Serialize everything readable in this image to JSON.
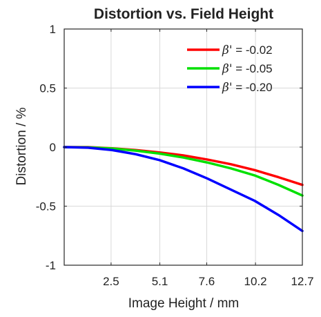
{
  "chart_data": {
    "type": "line",
    "title": "Distortion vs. Field Height",
    "xlabel": "Image Height / mm",
    "ylabel": "Distortion / %",
    "xlim": [
      0,
      12.7
    ],
    "ylim": [
      -1,
      1
    ],
    "xticks": [
      2.5,
      5.1,
      7.6,
      10.2,
      12.7
    ],
    "xtick_labels": [
      "2.5",
      "5.1",
      "7.6",
      "10.2",
      "12.7"
    ],
    "yticks": [
      1,
      0.5,
      0,
      -0.5,
      -1
    ],
    "ytick_labels": [
      "1",
      "0.5",
      "0",
      "-0.5",
      "-1"
    ],
    "grid": true,
    "legend_position": "top-right",
    "x": [
      0,
      1.27,
      2.54,
      3.81,
      5.08,
      6.35,
      7.62,
      8.89,
      10.16,
      11.43,
      12.7
    ],
    "series": [
      {
        "name": "β' = -0.02",
        "legend_symbol": "β'",
        "legend_value": " = -0.02",
        "color": "#ff0000",
        "values": [
          0,
          0,
          -0.01,
          -0.025,
          -0.045,
          -0.07,
          -0.105,
          -0.145,
          -0.195,
          -0.255,
          -0.32
        ]
      },
      {
        "name": "β' = -0.05",
        "legend_symbol": "β'",
        "legend_value": " = -0.05",
        "color": "#00e000",
        "values": [
          0,
          -0.002,
          -0.012,
          -0.03,
          -0.055,
          -0.088,
          -0.13,
          -0.18,
          -0.24,
          -0.32,
          -0.41
        ]
      },
      {
        "name": "β' = -0.20",
        "legend_symbol": "β'",
        "legend_value": " = -0.20",
        "color": "#0000ff",
        "values": [
          0,
          -0.005,
          -0.025,
          -0.06,
          -0.11,
          -0.18,
          -0.265,
          -0.36,
          -0.455,
          -0.575,
          -0.71
        ]
      }
    ]
  }
}
